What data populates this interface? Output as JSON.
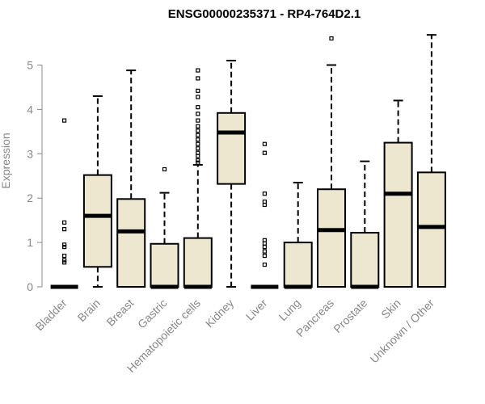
{
  "chart_data": {
    "type": "boxplot",
    "title": "ENSG00000235371 - RP4-764D2.1",
    "xlabel": "",
    "ylabel": "Expression",
    "ylim": [
      0,
      5.7
    ],
    "yticks": [
      0,
      1,
      2,
      3,
      4,
      5
    ],
    "ytick_labels": [
      "0",
      "1",
      "2",
      "3",
      "4",
      "5"
    ],
    "grid": false,
    "colors": {
      "box_fill": "#EDE7CF",
      "stroke": "#000000",
      "axis": "#888888"
    },
    "categories": [
      "Bladder",
      "Brain",
      "Breast",
      "Gastric",
      "Hematopoietic cells",
      "Kidney",
      "Liver",
      "Lung",
      "Pancreas",
      "Prostate",
      "Skin",
      "Unknown / Other"
    ],
    "boxes": [
      {
        "category": "Bladder",
        "min": 0,
        "q1": 0,
        "median": 0,
        "q3": 0,
        "max": 0,
        "outliers": [
          3.75,
          1.45,
          1.3,
          0.95,
          0.9,
          0.7,
          0.6,
          0.55
        ]
      },
      {
        "category": "Brain",
        "min": 0,
        "q1": 0.45,
        "median": 1.6,
        "q3": 2.52,
        "max": 4.3,
        "outliers": []
      },
      {
        "category": "Breast",
        "min": 0,
        "q1": 0,
        "median": 1.25,
        "q3": 1.98,
        "max": 4.88,
        "outliers": []
      },
      {
        "category": "Gastric",
        "min": 0,
        "q1": 0,
        "median": 0,
        "q3": 0.97,
        "max": 2.12,
        "outliers": [
          2.65
        ]
      },
      {
        "category": "Hematopoietic cells",
        "min": 0,
        "q1": 0,
        "median": 0,
        "q3": 1.1,
        "max": 2.75,
        "outliers": [
          4.88,
          4.7,
          4.42,
          4.28,
          4.05,
          3.9,
          3.75,
          3.62,
          3.52,
          3.42,
          3.32,
          3.22,
          3.12,
          3.02,
          2.95,
          2.85,
          2.8
        ]
      },
      {
        "category": "Kidney",
        "min": 0,
        "q1": 2.32,
        "median": 3.48,
        "q3": 3.92,
        "max": 5.1,
        "outliers": []
      },
      {
        "category": "Liver",
        "min": 0,
        "q1": 0,
        "median": 0,
        "q3": 0,
        "max": 0,
        "outliers": [
          3.22,
          3.02,
          2.1,
          1.92,
          1.85,
          1.05,
          0.98,
          0.9,
          0.8,
          0.7,
          0.5
        ]
      },
      {
        "category": "Lung",
        "min": 0,
        "q1": 0,
        "median": 0,
        "q3": 1.0,
        "max": 2.35,
        "outliers": []
      },
      {
        "category": "Pancreas",
        "min": 0,
        "q1": 0,
        "median": 1.28,
        "q3": 2.2,
        "max": 5.0,
        "outliers": [
          5.6
        ]
      },
      {
        "category": "Prostate",
        "min": 0,
        "q1": 0,
        "median": 0,
        "q3": 1.22,
        "max": 2.83,
        "outliers": []
      },
      {
        "category": "Skin",
        "min": 0,
        "q1": 0,
        "median": 2.1,
        "q3": 3.25,
        "max": 4.2,
        "outliers": []
      },
      {
        "category": "Unknown / Other",
        "min": 0,
        "q1": 0,
        "median": 1.35,
        "q3": 2.58,
        "max": 5.68,
        "outliers": []
      }
    ]
  }
}
